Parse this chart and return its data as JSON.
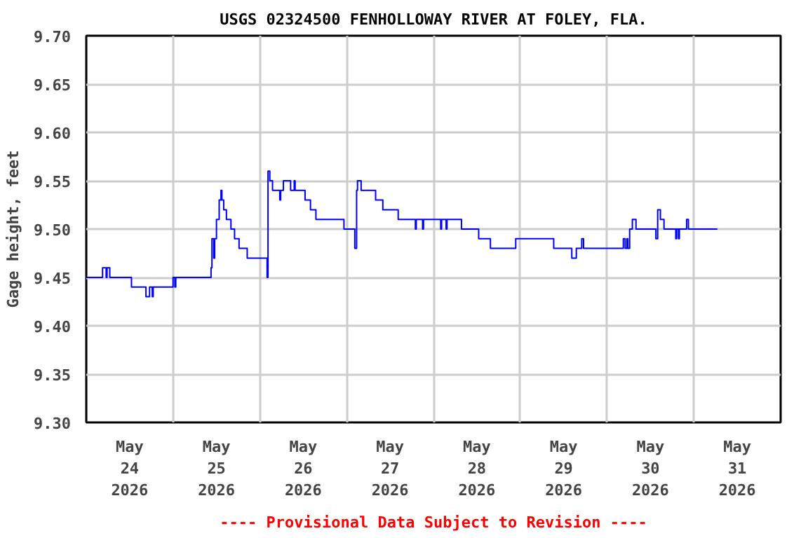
{
  "chart_data": {
    "type": "step",
    "title": "USGS 02324500 FENHOLLOWAY RIVER AT FOLEY, FLA.",
    "ylabel": "Gage height, feet",
    "annotations": [
      "---- Provisional Data Subject to Revision ----"
    ],
    "x": [
      "2026-05-24T00:00",
      "2026-05-24T04:15",
      "2026-05-24T04:30",
      "2026-05-24T05:30",
      "2026-05-24T05:45",
      "2026-05-24T06:30",
      "2026-05-24T12:00",
      "2026-05-24T12:30",
      "2026-05-24T16:15",
      "2026-05-24T16:30",
      "2026-05-24T17:30",
      "2026-05-24T18:15",
      "2026-05-24T18:30",
      "2026-05-24T23:30",
      "2026-05-25T00:00",
      "2026-05-25T00:30",
      "2026-05-25T00:45",
      "2026-05-25T10:00",
      "2026-05-25T10:30",
      "2026-05-25T10:45",
      "2026-05-25T11:15",
      "2026-05-25T11:30",
      "2026-05-25T12:00",
      "2026-05-25T12:45",
      "2026-05-25T13:15",
      "2026-05-25T13:30",
      "2026-05-25T14:00",
      "2026-05-25T14:45",
      "2026-05-25T16:00",
      "2026-05-25T17:00",
      "2026-05-25T18:15",
      "2026-05-25T20:30",
      "2026-05-26T01:45",
      "2026-05-26T02:00",
      "2026-05-26T02:15",
      "2026-05-26T02:45",
      "2026-05-26T03:30",
      "2026-05-26T05:00",
      "2026-05-26T05:30",
      "2026-05-26T05:45",
      "2026-05-26T06:30",
      "2026-05-26T08:00",
      "2026-05-26T08:30",
      "2026-05-26T09:15",
      "2026-05-26T09:30",
      "2026-05-26T09:45",
      "2026-05-26T12:00",
      "2026-05-26T12:30",
      "2026-05-26T14:00",
      "2026-05-26T15:30",
      "2026-05-26T22:45",
      "2026-05-26T23:15",
      "2026-05-27T01:45",
      "2026-05-27T02:15",
      "2026-05-27T02:45",
      "2026-05-27T03:00",
      "2026-05-27T04:00",
      "2026-05-27T08:00",
      "2026-05-27T10:00",
      "2026-05-27T14:15",
      "2026-05-27T19:00",
      "2026-05-27T19:15",
      "2026-05-27T21:00",
      "2026-05-27T21:15",
      "2026-05-28T02:00",
      "2026-05-28T02:15",
      "2026-05-28T03:30",
      "2026-05-28T03:45",
      "2026-05-28T07:45",
      "2026-05-28T12:00",
      "2026-05-28T12:30",
      "2026-05-28T15:45",
      "2026-05-28T22:30",
      "2026-05-28T22:45",
      "2026-05-29T09:00",
      "2026-05-29T09:15",
      "2026-05-29T13:45",
      "2026-05-29T14:15",
      "2026-05-29T15:00",
      "2026-05-29T15:30",
      "2026-05-29T17:00",
      "2026-05-29T17:30",
      "2026-05-30T04:15",
      "2026-05-30T04:30",
      "2026-05-30T05:00",
      "2026-05-30T05:30",
      "2026-05-30T05:45",
      "2026-05-30T06:15",
      "2026-05-30T07:00",
      "2026-05-30T07:45",
      "2026-05-30T08:00",
      "2026-05-30T13:00",
      "2026-05-30T13:30",
      "2026-05-30T14:00",
      "2026-05-30T14:45",
      "2026-05-30T15:30",
      "2026-05-30T15:45",
      "2026-05-30T18:30",
      "2026-05-30T19:00",
      "2026-05-30T19:15",
      "2026-05-30T19:45",
      "2026-05-30T20:00",
      "2026-05-30T21:30",
      "2026-05-30T22:00",
      "2026-05-30T22:30",
      "2026-05-31T06:30"
    ],
    "series": [
      {
        "color": "#0000ff",
        "values": [
          9.45,
          9.45,
          9.46,
          9.45,
          9.46,
          9.45,
          9.45,
          9.44,
          9.44,
          9.43,
          9.44,
          9.43,
          9.44,
          9.44,
          9.45,
          9.44,
          9.45,
          9.45,
          9.46,
          9.49,
          9.47,
          9.49,
          9.51,
          9.53,
          9.54,
          9.53,
          9.52,
          9.51,
          9.5,
          9.49,
          9.48,
          9.47,
          9.47,
          9.45,
          9.56,
          9.55,
          9.54,
          9.54,
          9.53,
          9.54,
          9.55,
          9.55,
          9.54,
          9.54,
          9.55,
          9.54,
          9.54,
          9.53,
          9.52,
          9.51,
          9.51,
          9.5,
          9.5,
          9.48,
          9.54,
          9.55,
          9.54,
          9.53,
          9.52,
          9.51,
          9.5,
          9.51,
          9.5,
          9.51,
          9.5,
          9.51,
          9.5,
          9.51,
          9.5,
          9.5,
          9.49,
          9.48,
          9.48,
          9.49,
          9.49,
          9.48,
          9.48,
          9.47,
          9.47,
          9.48,
          9.49,
          9.48,
          9.48,
          9.49,
          9.48,
          9.49,
          9.48,
          9.5,
          9.51,
          9.51,
          9.5,
          9.5,
          9.49,
          9.52,
          9.51,
          9.51,
          9.5,
          9.5,
          9.49,
          9.5,
          9.49,
          9.5,
          9.5,
          9.51,
          9.5,
          9.5
        ]
      }
    ],
    "xlim": [
      "2026-05-24T00:00",
      "2026-06-01T00:00"
    ],
    "xticks": [
      {
        "value": "2026-05-24T12:00",
        "label": "May\n24\n2026"
      },
      {
        "value": "2026-05-25T12:00",
        "label": "May\n25\n2026"
      },
      {
        "value": "2026-05-26T12:00",
        "label": "May\n26\n2026"
      },
      {
        "value": "2026-05-27T12:00",
        "label": "May\n27\n2026"
      },
      {
        "value": "2026-05-28T12:00",
        "label": "May\n28\n2026"
      },
      {
        "value": "2026-05-29T12:00",
        "label": "May\n29\n2026"
      },
      {
        "value": "2026-05-30T12:00",
        "label": "May\n30\n2026"
      },
      {
        "value": "2026-05-31T12:00",
        "label": "May\n31\n2026"
      },
      {
        "value": "2026-05-25T00:00",
        "label": null
      },
      {
        "value": "2026-05-26T00:00",
        "label": null
      },
      {
        "value": "2026-05-27T00:00",
        "label": null
      },
      {
        "value": "2026-05-28T00:00",
        "label": null
      },
      {
        "value": "2026-05-29T00:00",
        "label": null
      },
      {
        "value": "2026-05-30T00:00",
        "label": null
      },
      {
        "value": "2026-05-31T00:00",
        "label": null
      }
    ],
    "ylim": [
      9.3,
      9.7
    ],
    "yticks": [
      {
        "value": 9.3,
        "label": "9.30"
      },
      {
        "value": 9.35,
        "label": "9.35"
      },
      {
        "value": 9.4,
        "label": "9.40"
      },
      {
        "value": 9.45,
        "label": "9.45"
      },
      {
        "value": 9.5,
        "label": "9.50"
      },
      {
        "value": 9.55,
        "label": "9.55"
      },
      {
        "value": 9.6,
        "label": "9.60"
      },
      {
        "value": 9.65,
        "label": "9.65"
      },
      {
        "value": 9.7,
        "label": "9.70"
      }
    ],
    "grid": true
  }
}
